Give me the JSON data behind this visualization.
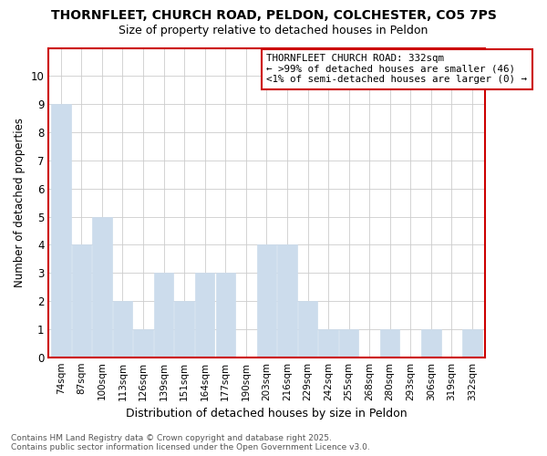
{
  "title": "THORNFLEET, CHURCH ROAD, PELDON, COLCHESTER, CO5 7PS",
  "subtitle": "Size of property relative to detached houses in Peldon",
  "xlabel": "Distribution of detached houses by size in Peldon",
  "ylabel": "Number of detached properties",
  "categories": [
    "74sqm",
    "87sqm",
    "100sqm",
    "113sqm",
    "126sqm",
    "139sqm",
    "151sqm",
    "164sqm",
    "177sqm",
    "190sqm",
    "203sqm",
    "216sqm",
    "229sqm",
    "242sqm",
    "255sqm",
    "268sqm",
    "280sqm",
    "293sqm",
    "306sqm",
    "319sqm",
    "332sqm"
  ],
  "values": [
    9,
    4,
    5,
    2,
    1,
    3,
    2,
    3,
    3,
    0,
    4,
    4,
    2,
    1,
    1,
    0,
    1,
    0,
    1,
    0,
    1
  ],
  "bar_color": "#ccdcec",
  "bar_edge_color": "#ccdcec",
  "ylim": [
    0,
    11
  ],
  "grid_color": "#cccccc",
  "background_color": "#ffffff",
  "spine_color": "#cc0000",
  "annotation_box_text": "THORNFLEET CHURCH ROAD: 332sqm\n← >99% of detached houses are smaller (46)\n<1% of semi-detached houses are larger (0) →",
  "annotation_box_edge_color": "#cc0000",
  "footer_text": "Contains HM Land Registry data © Crown copyright and database right 2025.\nContains public sector information licensed under the Open Government Licence v3.0."
}
